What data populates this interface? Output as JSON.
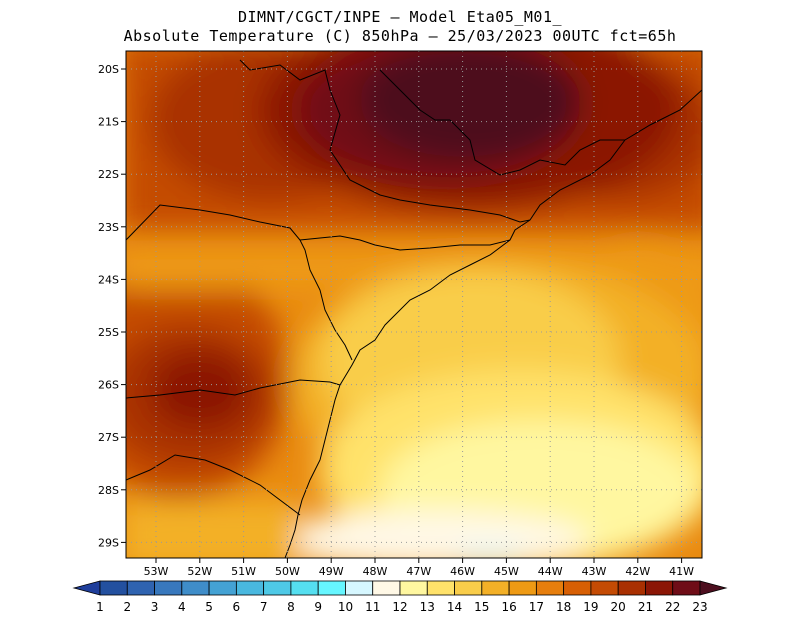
{
  "title": {
    "line1": "DIMNT/CGCT/INPE –  Model Eta05_M01_",
    "line2": "Absolute Temperature (C) 850hPa –  25/03/2023 00UTC fct=65h"
  },
  "map": {
    "lat_labels": [
      "20S",
      "21S",
      "22S",
      "23S",
      "24S",
      "25S",
      "26S",
      "27S",
      "28S",
      "29S"
    ],
    "lon_labels": [
      "53W",
      "52W",
      "51W",
      "50W",
      "49W",
      "48W",
      "47W",
      "46W",
      "45W",
      "44W",
      "43W",
      "42W",
      "41W"
    ]
  },
  "colorbar": {
    "labels": [
      "1",
      "2",
      "3",
      "4",
      "5",
      "6",
      "7",
      "8",
      "9",
      "10",
      "11",
      "12",
      "13",
      "14",
      "15",
      "16",
      "17",
      "18",
      "19",
      "20",
      "21",
      "22",
      "23"
    ],
    "colors": [
      "#1f3e9b",
      "#23509f",
      "#2f63b0",
      "#3878bd",
      "#3f8dc9",
      "#44a2d4",
      "#49b8df",
      "#4ec9e6",
      "#55dff0",
      "#66f6ff",
      "#d6f7ff",
      "#fff8e6",
      "#fff7a0",
      "#ffe26a",
      "#f9cd4a",
      "#f3b027",
      "#ee9a14",
      "#e67e0d",
      "#d75f04",
      "#c44b04",
      "#a93001",
      "#8b1605",
      "#6f0d17",
      "#4d0f1f"
    ]
  }
}
